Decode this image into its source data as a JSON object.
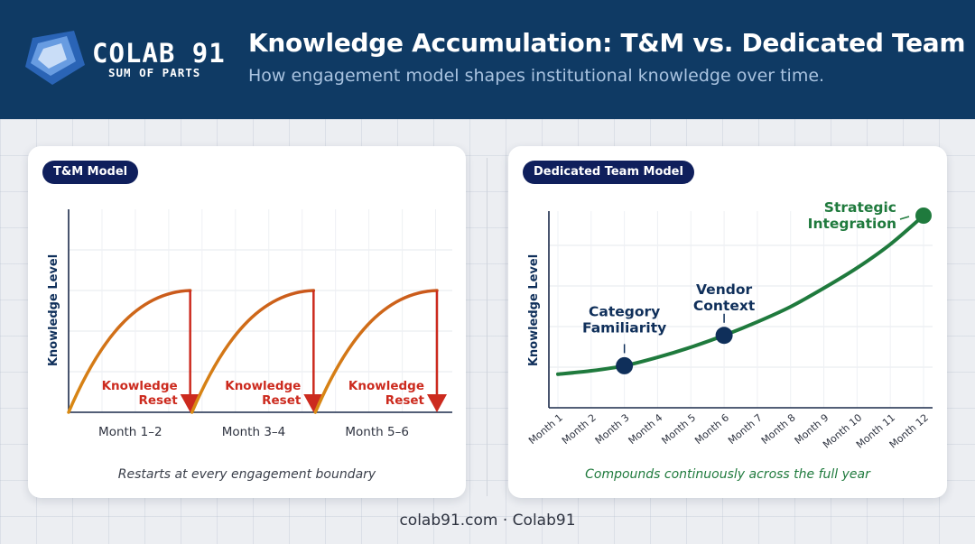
{
  "brand": {
    "name": "COLAB 91",
    "tagline": "SUM OF PARTS"
  },
  "header": {
    "title": "Knowledge Accumulation: T&M vs. Dedicated Team",
    "subtitle": "How engagement model shapes institutional knowledge over time."
  },
  "footer": "colab91.com · Colab91",
  "colors": {
    "header_bg": "#0f3a64",
    "pill_bg": "#0f1f5c",
    "tm_curve": "#d98a14",
    "reset_red": "#cc2a1e",
    "dedicated_green": "#1f7a3d",
    "milestone_navy": "#0f2f5a"
  },
  "chart_data": [
    {
      "type": "line",
      "panel_label": "T&M Model",
      "ylabel": "Knowledge Level",
      "categories": [
        "Month 1–2",
        "Month 3–4",
        "Month 5–6"
      ],
      "pattern": "rise-then-reset per engagement",
      "segments": [
        {
          "category": "Month 1–2",
          "start": 0,
          "peak": 1
        },
        {
          "category": "Month 3–4",
          "start": 0,
          "peak": 1
        },
        {
          "category": "Month 5–6",
          "start": 0,
          "peak": 1
        }
      ],
      "annotations": [
        "Knowledge Reset",
        "Knowledge Reset",
        "Knowledge Reset"
      ],
      "caption": "Restarts at every engagement boundary",
      "grid": true
    },
    {
      "type": "line",
      "panel_label": "Dedicated Team Model",
      "ylabel": "Knowledge Level",
      "x": [
        "Month 1",
        "Month 2",
        "Month 3",
        "Month 4",
        "Month 5",
        "Month 6",
        "Month 7",
        "Month 8",
        "Month 9",
        "Month 10",
        "Month 11",
        "Month 12"
      ],
      "y": [
        0.06,
        0.08,
        0.11,
        0.16,
        0.22,
        0.29,
        0.37,
        0.46,
        0.57,
        0.69,
        0.83,
        1.0
      ],
      "milestones": [
        {
          "month": "Month 3",
          "label": [
            "Category",
            "Familiarity"
          ]
        },
        {
          "month": "Month 6",
          "label": [
            "Vendor",
            "Context"
          ]
        },
        {
          "month": "Month 12",
          "label": [
            "Strategic",
            "Integration"
          ]
        }
      ],
      "caption": "Compounds continuously across the full year",
      "grid": true
    }
  ]
}
